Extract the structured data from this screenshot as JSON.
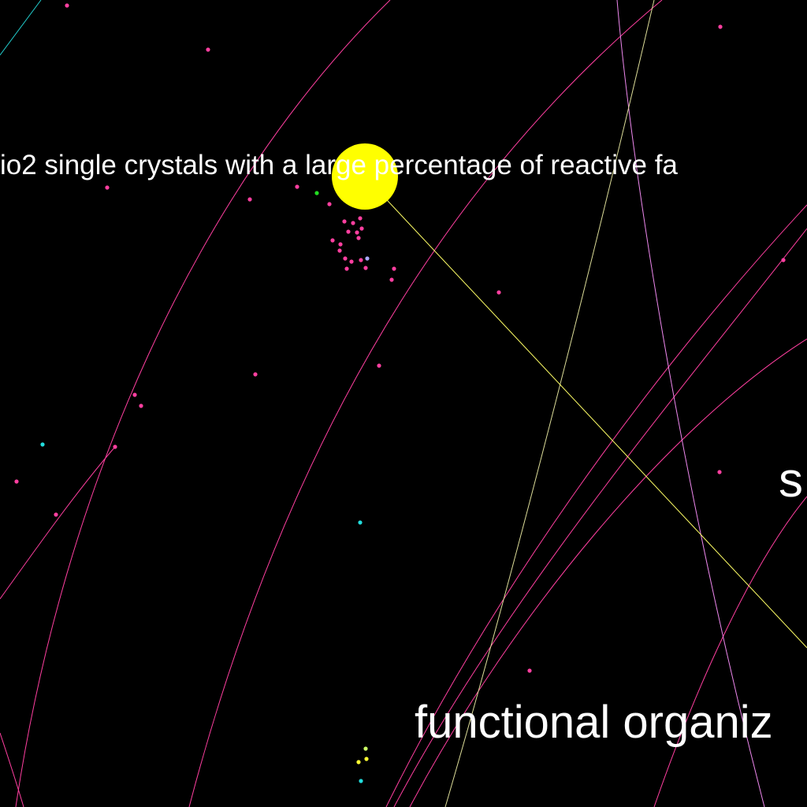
{
  "labels": {
    "top_phrase": "io2 single crystals with a large percentage of reactive fa",
    "bottom_phrase": "functional organiz",
    "right_fragment": "s"
  },
  "colors": {
    "background": "#000000",
    "main_node": "#ffff00",
    "link_yellow": "#ffff66",
    "link_pink": "#ff3fa0",
    "link_violet": "#ee88ee",
    "link_pale": "#dddd99",
    "link_cyan": "#22cccc",
    "node_pink": "#ff3fa0",
    "node_green": "#22dd22",
    "node_cyan": "#22dddd",
    "node_lavender": "#aaaaff",
    "node_yellow": "#ffff33",
    "node_lime": "#ccff66",
    "text": "#ffffff"
  }
}
